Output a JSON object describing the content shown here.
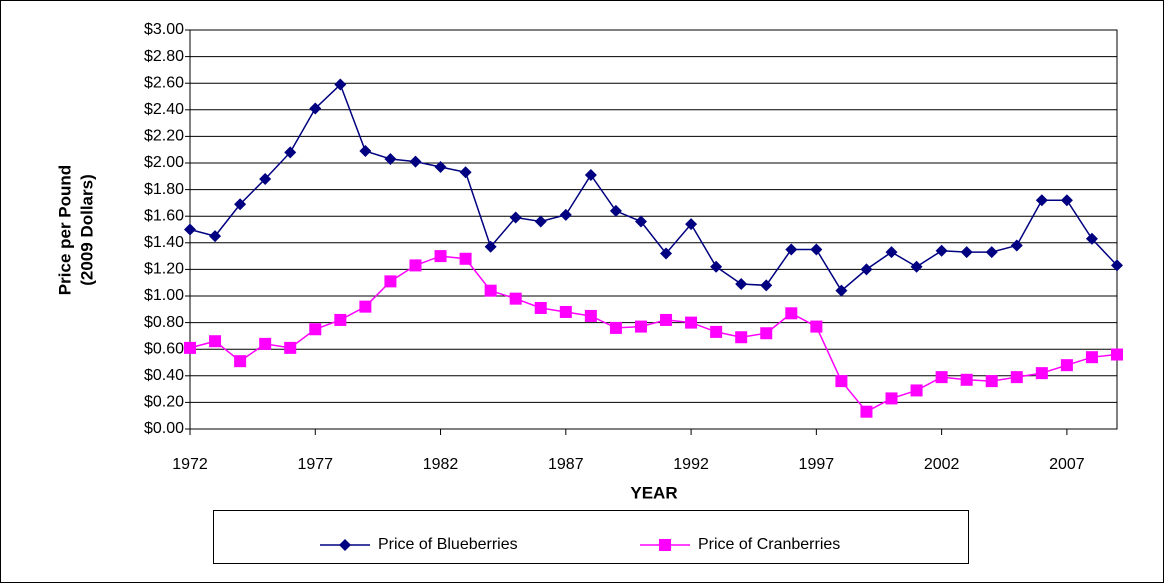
{
  "chart_data": {
    "type": "line",
    "x_label": "YEAR",
    "y_label": [
      "Price per Pound",
      "(2009 Dollars)"
    ],
    "x": [
      1972,
      1973,
      1974,
      1975,
      1976,
      1977,
      1978,
      1979,
      1980,
      1981,
      1982,
      1983,
      1984,
      1985,
      1986,
      1987,
      1988,
      1989,
      1990,
      1991,
      1992,
      1993,
      1994,
      1995,
      1996,
      1997,
      1998,
      1999,
      2000,
      2001,
      2002,
      2003,
      2004,
      2005,
      2006,
      2007,
      2008,
      2009
    ],
    "series": [
      {
        "name": "Price of Blueberries",
        "color": "#000080",
        "marker": "diamond",
        "values": [
          1.5,
          1.45,
          1.69,
          1.88,
          2.08,
          2.41,
          2.59,
          2.09,
          2.03,
          2.01,
          1.97,
          1.93,
          1.37,
          1.59,
          1.56,
          1.61,
          1.91,
          1.64,
          1.56,
          1.32,
          1.54,
          1.22,
          1.09,
          1.08,
          1.35,
          1.35,
          1.04,
          1.2,
          1.33,
          1.22,
          1.34,
          1.33,
          1.33,
          1.38,
          1.72,
          1.72,
          1.43,
          1.23
        ]
      },
      {
        "name": "Price of Cranberries",
        "color": "#ff00ff",
        "marker": "square",
        "values": [
          0.61,
          0.66,
          0.51,
          0.64,
          0.61,
          0.75,
          0.82,
          0.92,
          1.11,
          1.23,
          1.3,
          1.28,
          1.04,
          0.98,
          0.91,
          0.88,
          0.85,
          0.76,
          0.77,
          0.82,
          0.8,
          0.73,
          0.69,
          0.72,
          0.87,
          0.77,
          0.36,
          0.13,
          0.23,
          0.29,
          0.39,
          0.37,
          0.36,
          0.39,
          0.42,
          0.48,
          0.54,
          0.56
        ]
      }
    ],
    "xlim": [
      1972,
      2009
    ],
    "xticks": [
      1972,
      1977,
      1982,
      1987,
      1992,
      1997,
      2002,
      2007
    ],
    "ylim": [
      0,
      3
    ],
    "yticks": [
      {
        "value": 0,
        "label": "$0.00"
      },
      {
        "value": 0.2,
        "label": "$0.20"
      },
      {
        "value": 0.4,
        "label": "$0.40"
      },
      {
        "value": 0.6,
        "label": "$0.60"
      },
      {
        "value": 0.8,
        "label": "$0.80"
      },
      {
        "value": 1.0,
        "label": "$1.00"
      },
      {
        "value": 1.2,
        "label": "$1.20"
      },
      {
        "value": 1.4,
        "label": "$1.40"
      },
      {
        "value": 1.6,
        "label": "$1.60"
      },
      {
        "value": 1.8,
        "label": "$1.80"
      },
      {
        "value": 2.0,
        "label": "$2.00"
      },
      {
        "value": 2.2,
        "label": "$2.20"
      },
      {
        "value": 2.4,
        "label": "$2.40"
      },
      {
        "value": 2.6,
        "label": "$2.60"
      },
      {
        "value": 2.8,
        "label": "$2.80"
      },
      {
        "value": 3.0,
        "label": "$3.00"
      }
    ],
    "grid": true,
    "legend": "bottom"
  }
}
